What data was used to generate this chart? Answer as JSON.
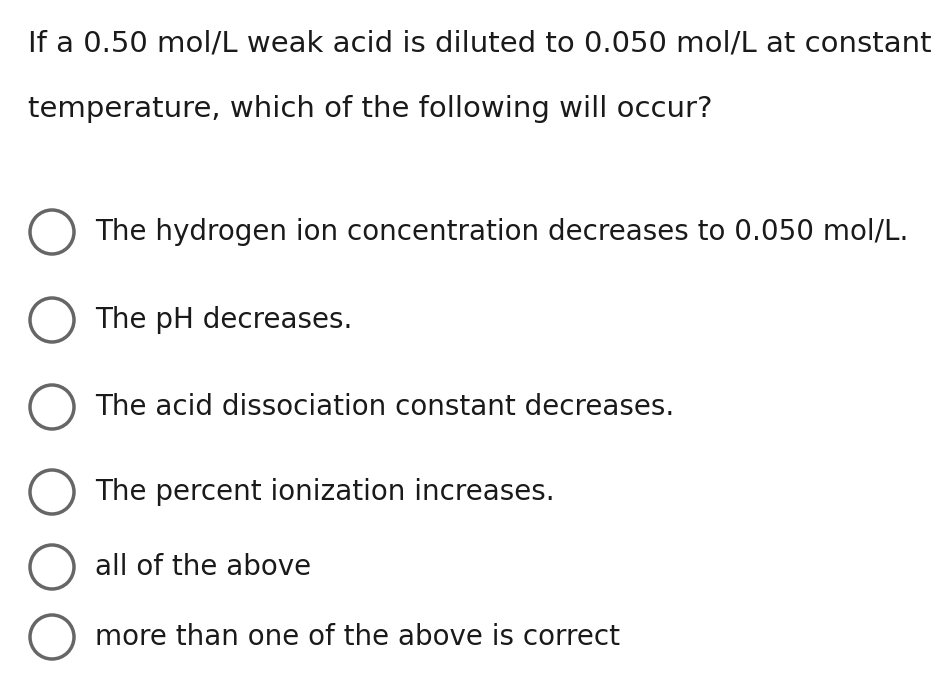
{
  "background_color": "#ffffff",
  "question_line1": "If a 0.50 mol/L weak acid is diluted to 0.050 mol/L at constant",
  "question_line2": "temperature, which of the following will occur?",
  "options": [
    "The hydrogen ion concentration decreases to 0.050 mol/L.",
    "The pH decreases.",
    "The acid dissociation constant decreases.",
    "The percent ionization increases.",
    "all of the above",
    "more than one of the above is correct"
  ],
  "question_fontsize": 21,
  "option_fontsize": 20,
  "text_color": "#1a1a1a",
  "circle_color": "#666666",
  "fig_width": 9.52,
  "fig_height": 6.78,
  "dpi": 100
}
